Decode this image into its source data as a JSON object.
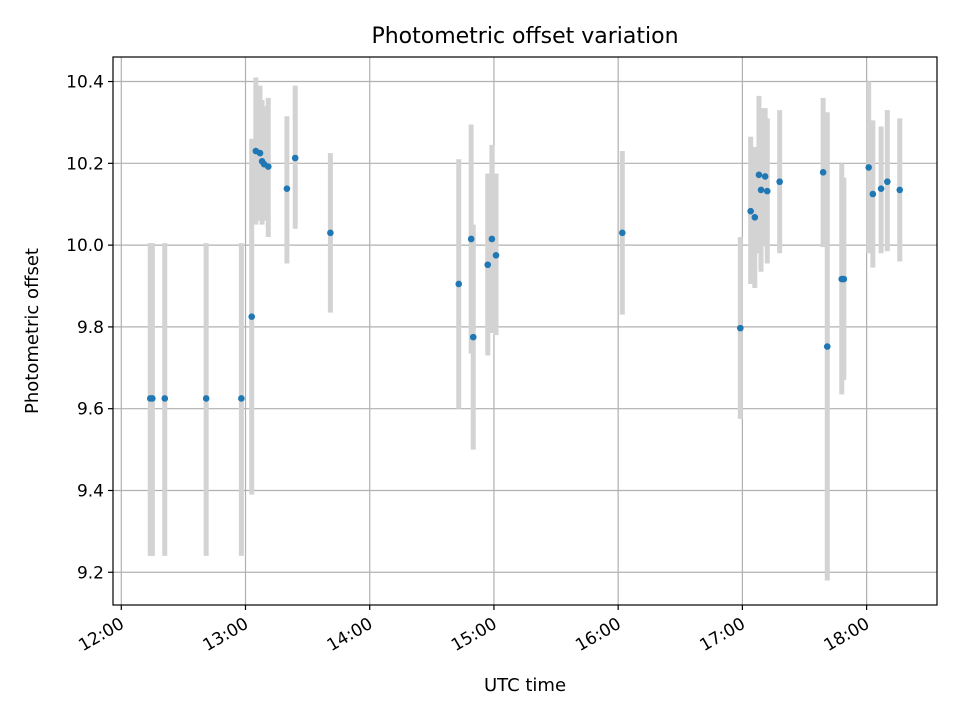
{
  "chart_data": {
    "type": "scatter",
    "title": "Photometric offset variation",
    "xlabel": "UTC time",
    "ylabel": "Photometric offset",
    "xlim": [
      "11:56",
      "18:34"
    ],
    "ylim": [
      9.12,
      10.46
    ],
    "x_ticks": [
      "12:00",
      "13:00",
      "14:00",
      "15:00",
      "16:00",
      "17:00",
      "18:00"
    ],
    "y_ticks": [
      "9.2",
      "9.4",
      "9.6",
      "9.8",
      "10.0",
      "10.2",
      "10.4"
    ],
    "grid": true,
    "colors": {
      "points": "#1f77b4",
      "error_bars": "#d3d3d3",
      "grid": "#b0b0b0"
    },
    "series": [
      {
        "points": [
          {
            "x": "12:14",
            "y": 9.625,
            "lo": 9.24,
            "hi": 10.005
          },
          {
            "x": "12:15",
            "y": 9.625,
            "lo": 9.24,
            "hi": 10.005
          },
          {
            "x": "12:21",
            "y": 9.625,
            "lo": 9.24,
            "hi": 10.005
          },
          {
            "x": "12:41",
            "y": 9.625,
            "lo": 9.24,
            "hi": 10.005
          },
          {
            "x": "12:58",
            "y": 9.625,
            "lo": 9.24,
            "hi": 10.005
          },
          {
            "x": "13:03",
            "y": 9.825,
            "lo": 9.39,
            "hi": 10.26
          },
          {
            "x": "13:05",
            "y": 10.23,
            "lo": 10.05,
            "hi": 10.41
          },
          {
            "x": "13:07",
            "y": 10.225,
            "lo": 10.06,
            "hi": 10.39
          },
          {
            "x": "13:08",
            "y": 10.205,
            "lo": 10.05,
            "hi": 10.355
          },
          {
            "x": "13:09",
            "y": 10.198,
            "lo": 10.06,
            "hi": 10.34
          },
          {
            "x": "13:11",
            "y": 10.192,
            "lo": 10.02,
            "hi": 10.36
          },
          {
            "x": "13:20",
            "y": 10.138,
            "lo": 9.955,
            "hi": 10.315
          },
          {
            "x": "13:24",
            "y": 10.213,
            "lo": 10.04,
            "hi": 10.39
          },
          {
            "x": "13:41",
            "y": 10.03,
            "lo": 9.835,
            "hi": 10.225
          },
          {
            "x": "14:43",
            "y": 9.905,
            "lo": 9.6,
            "hi": 10.21
          },
          {
            "x": "14:49",
            "y": 10.015,
            "lo": 9.735,
            "hi": 10.295
          },
          {
            "x": "14:50",
            "y": 9.775,
            "lo": 9.5,
            "hi": 10.05
          },
          {
            "x": "14:57",
            "y": 9.952,
            "lo": 9.73,
            "hi": 10.175
          },
          {
            "x": "14:59",
            "y": 10.015,
            "lo": 9.785,
            "hi": 10.245
          },
          {
            "x": "15:01",
            "y": 9.975,
            "lo": 9.78,
            "hi": 10.175
          },
          {
            "x": "16:02",
            "y": 10.03,
            "lo": 9.83,
            "hi": 10.23
          },
          {
            "x": "16:59",
            "y": 9.797,
            "lo": 9.575,
            "hi": 10.02
          },
          {
            "x": "17:04",
            "y": 10.083,
            "lo": 9.905,
            "hi": 10.265
          },
          {
            "x": "17:06",
            "y": 10.068,
            "lo": 9.895,
            "hi": 10.24
          },
          {
            "x": "17:08",
            "y": 10.172,
            "lo": 9.98,
            "hi": 10.365
          },
          {
            "x": "17:09",
            "y": 10.135,
            "lo": 9.935,
            "hi": 10.335
          },
          {
            "x": "17:11",
            "y": 10.168,
            "lo": 10.0,
            "hi": 10.335
          },
          {
            "x": "17:12",
            "y": 10.132,
            "lo": 9.955,
            "hi": 10.31
          },
          {
            "x": "17:18",
            "y": 10.155,
            "lo": 9.98,
            "hi": 10.33
          },
          {
            "x": "17:39",
            "y": 10.178,
            "lo": 9.995,
            "hi": 10.36
          },
          {
            "x": "17:41",
            "y": 9.752,
            "lo": 9.18,
            "hi": 10.325
          },
          {
            "x": "17:48",
            "y": 9.917,
            "lo": 9.635,
            "hi": 10.2
          },
          {
            "x": "17:49",
            "y": 9.917,
            "lo": 9.67,
            "hi": 10.165
          },
          {
            "x": "18:01",
            "y": 10.19,
            "lo": 9.98,
            "hi": 10.4
          },
          {
            "x": "18:03",
            "y": 10.125,
            "lo": 9.945,
            "hi": 10.305
          },
          {
            "x": "18:07",
            "y": 10.138,
            "lo": 9.98,
            "hi": 10.29
          },
          {
            "x": "18:10",
            "y": 10.155,
            "lo": 9.985,
            "hi": 10.33
          },
          {
            "x": "18:16",
            "y": 10.135,
            "lo": 9.96,
            "hi": 10.31
          }
        ]
      }
    ]
  }
}
